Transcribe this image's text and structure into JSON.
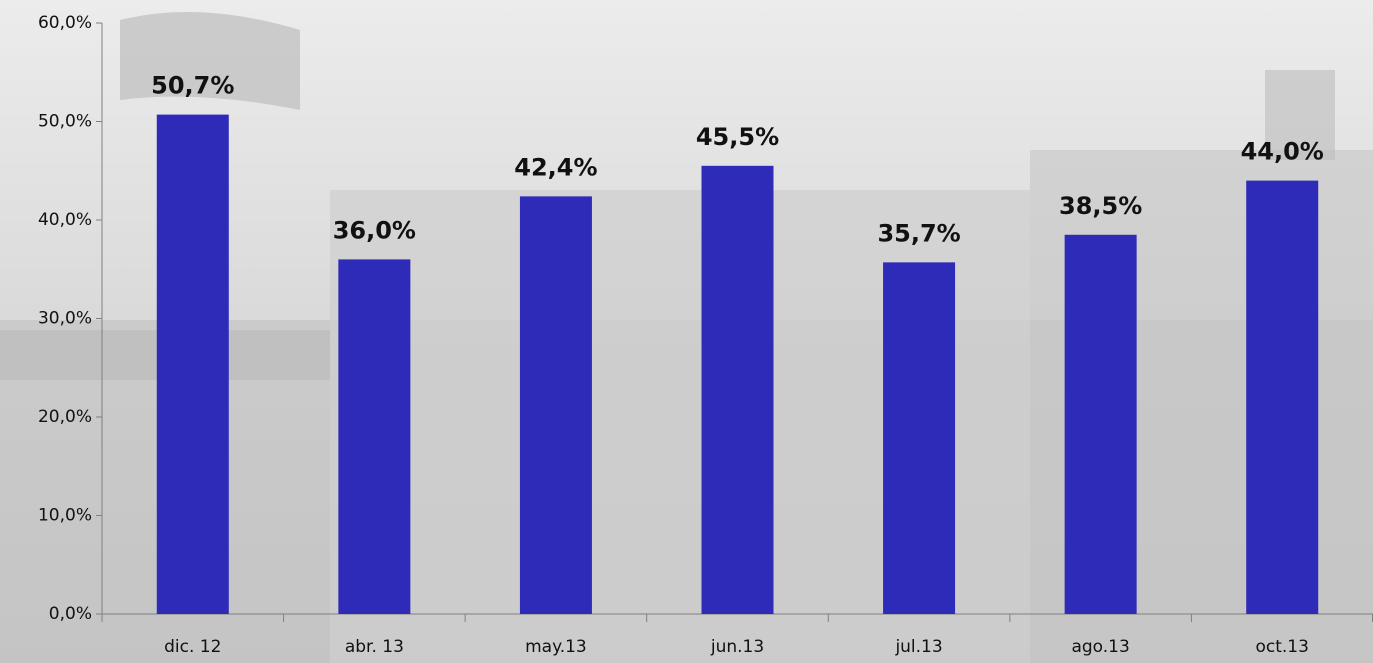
{
  "chart_data": {
    "type": "bar",
    "categories": [
      "dic. 12",
      "abr. 13",
      "may.13",
      "jun.13",
      "jul.13",
      "ago.13",
      "oct.13"
    ],
    "values": [
      50.7,
      36.0,
      42.4,
      45.5,
      35.7,
      38.5,
      44.0
    ],
    "value_labels": [
      "50,7%",
      "36,0%",
      "42,4%",
      "45,5%",
      "35,7%",
      "38,5%",
      "44,0%"
    ],
    "color": "#2e2bb8",
    "ylim": [
      0,
      60
    ],
    "yticks": [
      {
        "value": 0,
        "label": "0,0%"
      },
      {
        "value": 10,
        "label": "10,0%"
      },
      {
        "value": 20,
        "label": "20,0%"
      },
      {
        "value": 30,
        "label": "30,0%"
      },
      {
        "value": 40,
        "label": "40,0%"
      },
      {
        "value": 50,
        "label": "50,0%"
      },
      {
        "value": 60,
        "label": "60,0%"
      }
    ],
    "grid": false
  }
}
